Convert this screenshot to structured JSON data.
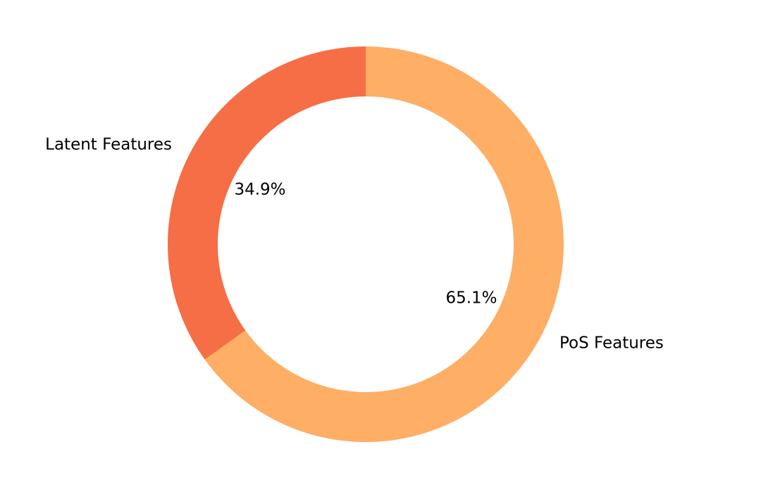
{
  "chart_data": {
    "type": "donut",
    "categories": [
      "Latent Features",
      "PoS Features"
    ],
    "values": [
      34.9,
      65.1
    ],
    "value_labels": [
      "34.9%",
      "65.1%"
    ],
    "colors": [
      "#f66e45",
      "#feae65"
    ]
  }
}
